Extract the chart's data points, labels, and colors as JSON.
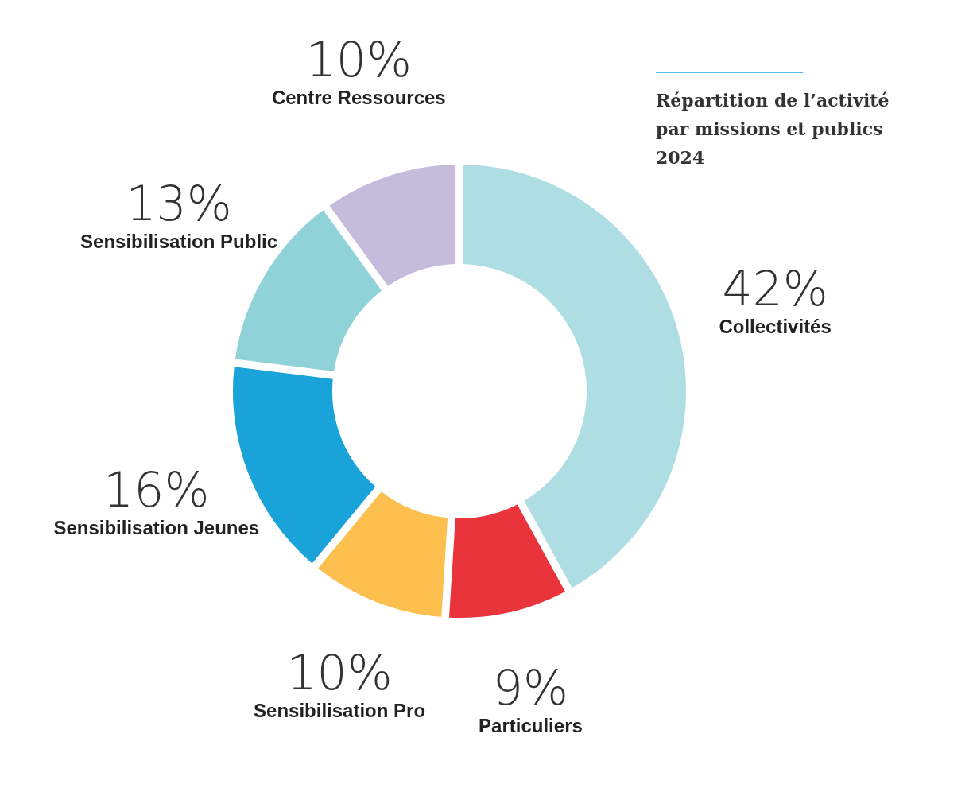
{
  "chart_data": {
    "type": "donut",
    "title": "Répartition de l’activité par missions et publics 2024",
    "categories": [
      "Collectivités",
      "Particuliers",
      "Sensibilisation Pro",
      "Sensibilisation Jeunes",
      "Sensibilisation Public",
      "Centre Ressources"
    ],
    "values": [
      42,
      9,
      10,
      16,
      13,
      10
    ],
    "value_labels": [
      "42%",
      "9%",
      "10%",
      "16%",
      "13%",
      "10%"
    ],
    "colors": [
      "#aedde3",
      "#e8343a",
      "#fdc04f",
      "#1aa3d9",
      "#8fd3d8",
      "#c5bbdb"
    ]
  }
}
